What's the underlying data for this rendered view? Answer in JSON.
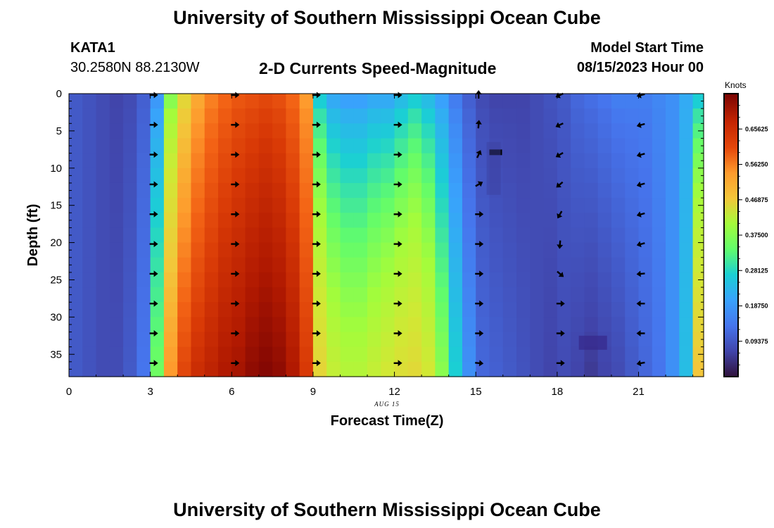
{
  "header": {
    "title": "University of Southern Mississippi Ocean Cube",
    "station_id": "KATA1",
    "station_coords": "30.2580N  88.2130W",
    "chart_title": "2-D Currents Speed-Magnitude",
    "start_label": "Model Start Time",
    "start_value": "08/15/2023 Hour 00",
    "footer_title": "University of Southern Mississippi Ocean Cube"
  },
  "chart_data": {
    "type": "heatmap",
    "title": "2-D Currents Speed-Magnitude",
    "xlabel": "Forecast Time(Z)",
    "ylabel": "Depth (ft)",
    "date_label": "AUG 15",
    "xlim": [
      0,
      23.4
    ],
    "ylim": [
      0,
      38
    ],
    "xticks": [
      0,
      3,
      6,
      9,
      12,
      15,
      18,
      21
    ],
    "yticks": [
      0,
      5,
      10,
      15,
      20,
      25,
      30,
      35
    ],
    "colorbar": {
      "title": "Knots",
      "range": [
        0,
        0.75
      ],
      "tick_labels": [
        "0.65625",
        "0.56250",
        "0.46875",
        "0.37500",
        "0.28125",
        "0.18750",
        "0.09375"
      ],
      "tick_values": [
        0.65625,
        0.5625,
        0.46875,
        0.375,
        0.28125,
        0.1875,
        0.09375
      ]
    },
    "speed_profile": {
      "hours": [
        0,
        0.5,
        1,
        1.5,
        2,
        2.5,
        3,
        3.5,
        4,
        4.5,
        5,
        5.5,
        6,
        6.5,
        7,
        7.5,
        8,
        8.5,
        9,
        9.5,
        10,
        10.5,
        11,
        11.5,
        12,
        12.5,
        13,
        13.5,
        14,
        14.5,
        15,
        15.5,
        16,
        16.5,
        17,
        17.5,
        18,
        18.5,
        19,
        19.5,
        20,
        20.5,
        21,
        21.5,
        22,
        22.5,
        23
      ],
      "surface_knots": [
        0.08,
        0.07,
        0.06,
        0.05,
        0.06,
        0.09,
        0.16,
        0.3,
        0.42,
        0.5,
        0.55,
        0.58,
        0.6,
        0.61,
        0.62,
        0.61,
        0.58,
        0.52,
        0.22,
        0.18,
        0.17,
        0.17,
        0.18,
        0.18,
        0.2,
        0.22,
        0.2,
        0.17,
        0.13,
        0.09,
        0.06,
        0.05,
        0.05,
        0.05,
        0.06,
        0.07,
        0.08,
        0.1,
        0.11,
        0.12,
        0.13,
        0.13,
        0.13,
        0.14,
        0.15,
        0.18,
        0.22
      ],
      "bottom_knots": [
        0.08,
        0.07,
        0.06,
        0.06,
        0.08,
        0.12,
        0.28,
        0.52,
        0.62,
        0.66,
        0.68,
        0.7,
        0.71,
        0.73,
        0.74,
        0.73,
        0.7,
        0.64,
        0.42,
        0.36,
        0.34,
        0.34,
        0.36,
        0.38,
        0.4,
        0.41,
        0.38,
        0.3,
        0.22,
        0.15,
        0.1,
        0.09,
        0.08,
        0.07,
        0.06,
        0.05,
        0.06,
        0.05,
        0.04,
        0.05,
        0.06,
        0.08,
        0.1,
        0.12,
        0.15,
        0.2,
        0.45
      ]
    },
    "vector_hours": [
      3,
      6,
      9,
      12,
      15,
      18,
      21
    ],
    "vector_depths": [
      0,
      4,
      8,
      12,
      16,
      20,
      24,
      28,
      32,
      36
    ],
    "vector_directions_deg": [
      [
        0,
        0,
        0,
        0,
        0,
        0,
        0,
        0,
        0,
        0
      ],
      [
        0,
        0,
        0,
        0,
        0,
        0,
        0,
        0,
        0,
        0
      ],
      [
        0,
        0,
        0,
        0,
        0,
        0,
        0,
        0,
        0,
        0
      ],
      [
        0,
        0,
        0,
        0,
        0,
        0,
        0,
        0,
        0,
        0
      ],
      [
        -90,
        -85,
        -65,
        -30,
        0,
        0,
        0,
        0,
        0,
        5
      ],
      [
        155,
        155,
        150,
        140,
        120,
        95,
        40,
        0,
        0,
        0
      ],
      [
        165,
        165,
        165,
        165,
        165,
        165,
        175,
        180,
        180,
        170
      ]
    ]
  }
}
